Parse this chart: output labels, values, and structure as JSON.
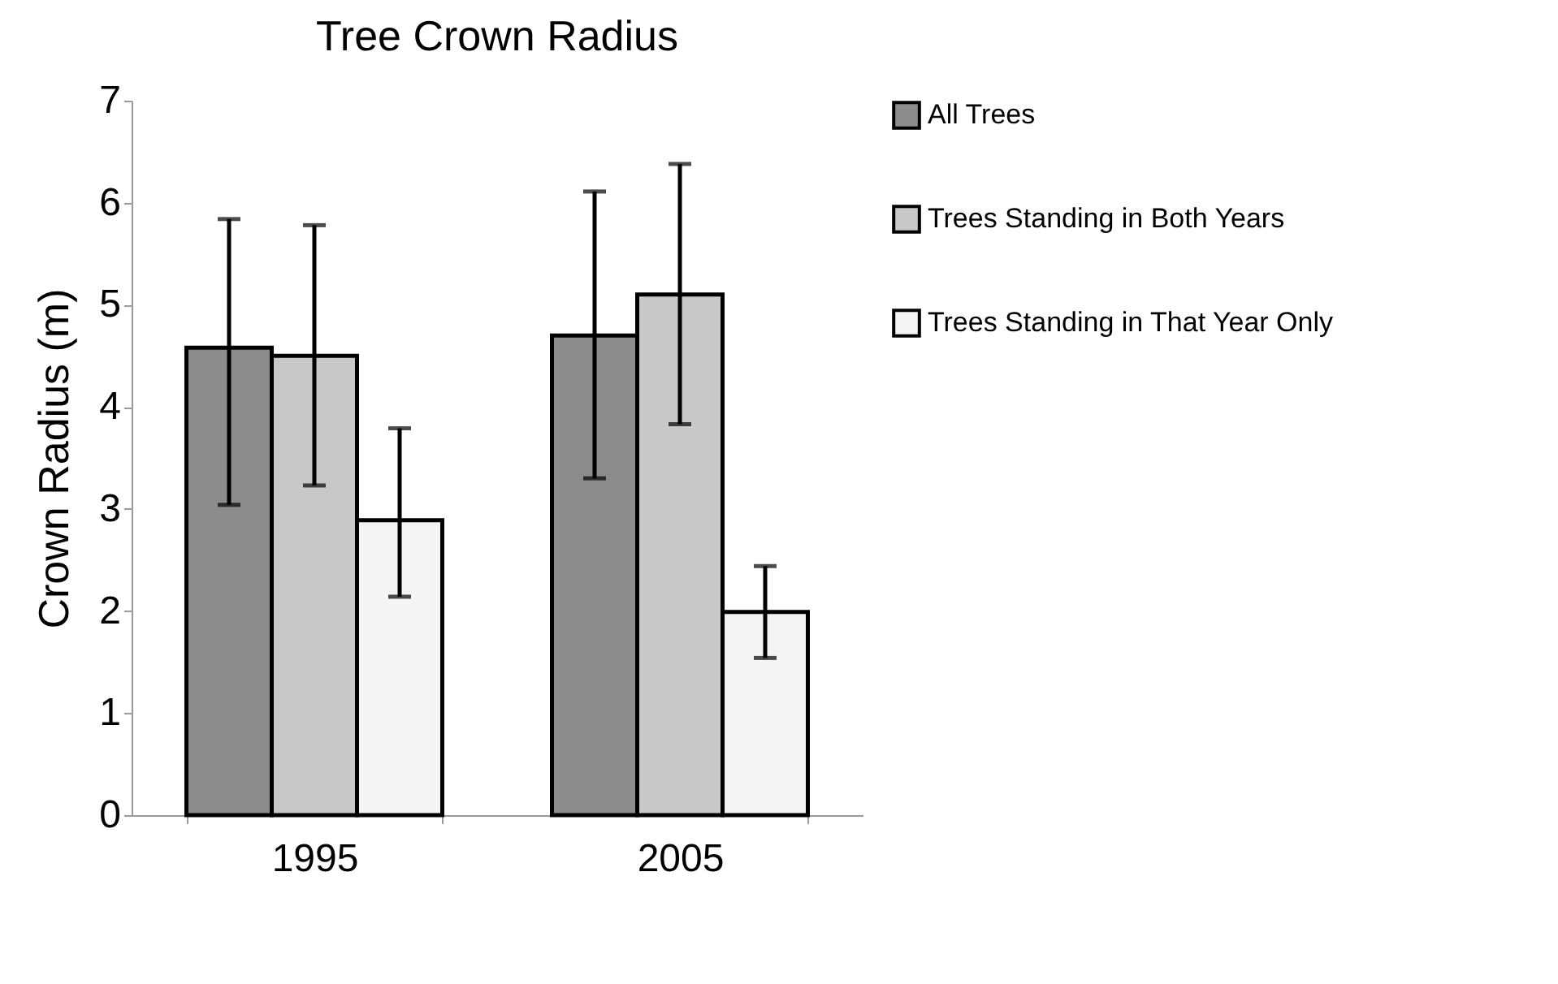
{
  "chart_data": {
    "type": "bar",
    "title": "Tree Crown Radius",
    "ylabel": "Crown Radius (m)",
    "categories": [
      "1995",
      "2005"
    ],
    "series": [
      {
        "name": "All Trees",
        "color": "#8c8c8c",
        "values": [
          4.58,
          4.7
        ],
        "errors": [
          [
            3.04,
            5.84
          ],
          [
            3.3,
            6.11
          ]
        ]
      },
      {
        "name": "Trees Standing in Both Years",
        "color": "#c8c8c8",
        "values": [
          4.5,
          5.1
        ],
        "errors": [
          [
            3.23,
            5.78
          ],
          [
            3.83,
            6.38
          ]
        ]
      },
      {
        "name": "Trees Standing in That Year Only",
        "color": "#f4f4f4",
        "values": [
          2.89,
          1.99
        ],
        "errors": [
          [
            2.14,
            3.79
          ],
          [
            1.54,
            2.44
          ]
        ]
      }
    ],
    "ylim": [
      0,
      7
    ],
    "yticks": [
      0,
      1,
      2,
      3,
      4,
      5,
      6,
      7
    ],
    "grid": false,
    "legend": "right"
  }
}
